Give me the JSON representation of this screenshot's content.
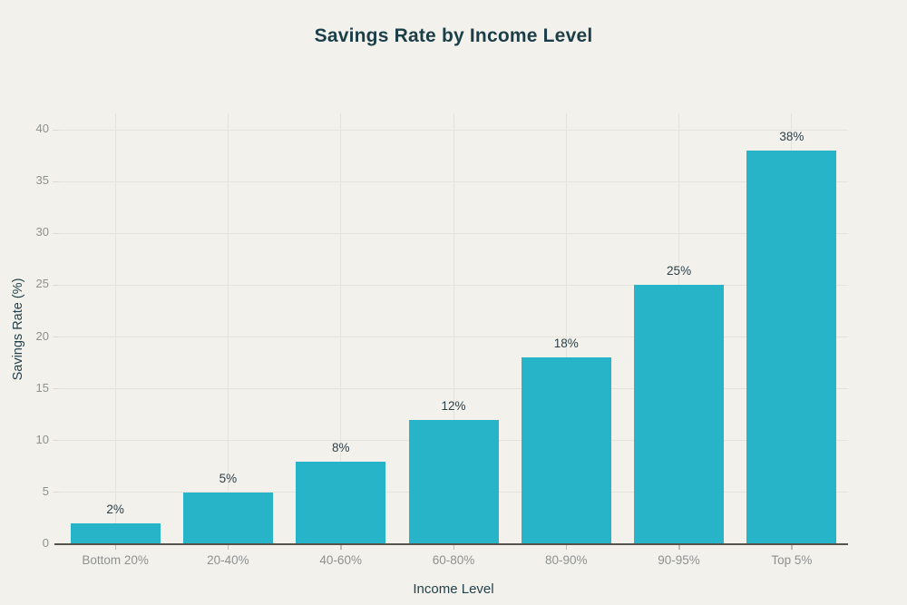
{
  "chart_data": {
    "type": "bar",
    "title": "Savings Rate by Income Level",
    "categories": [
      "Bottom 20%",
      "20-40%",
      "40-60%",
      "60-80%",
      "80-90%",
      "90-95%",
      "Top 5%"
    ],
    "values": [
      2,
      5,
      8,
      12,
      18,
      25,
      38
    ],
    "value_labels": [
      "2%",
      "5%",
      "8%",
      "12%",
      "18%",
      "25%",
      "38%"
    ],
    "xlabel": "Income Level",
    "ylabel": "Savings Rate (%)",
    "ylim": [
      0,
      40
    ],
    "yticks": [
      0,
      5,
      10,
      15,
      20,
      25,
      30,
      35,
      40
    ],
    "grid": true,
    "legend": "none",
    "colors": {
      "bar": "#27b4c8",
      "title_text": "#1c3e49",
      "axis_title_text": "#24424d",
      "tick_text": "#8e918f",
      "value_label_text": "#2b3f48",
      "gridline": "#e4e3de",
      "axis_line": "#56534d",
      "x_tick_mark": "#bcbbb5",
      "y_tick_mark": "#dadad4",
      "background": "#f2f1ec"
    }
  }
}
